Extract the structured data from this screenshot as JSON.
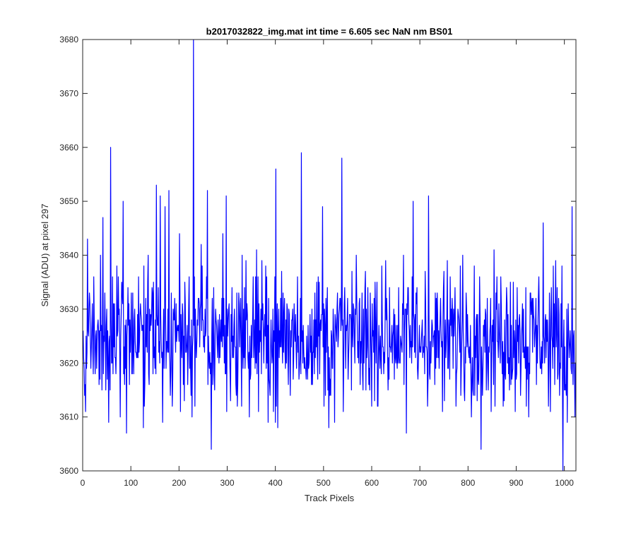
{
  "chart_data": {
    "type": "line",
    "title": "b2017032822_img.mat int time = 6.605 sec  NaN nm BS01",
    "xlabel": "Track Pixels",
    "ylabel": "Signal (ADU) at pixel 297",
    "xlim": [
      0,
      1024
    ],
    "ylim": [
      3600,
      3680
    ],
    "xticks": [
      0,
      100,
      200,
      300,
      400,
      500,
      600,
      700,
      800,
      900,
      1000
    ],
    "yticks": [
      3600,
      3610,
      3620,
      3630,
      3640,
      3650,
      3660,
      3670,
      3680
    ],
    "grid": false,
    "legend": "none",
    "series": [
      {
        "color": "#0000ff",
        "n_points": 1024,
        "noise_mean": 3626,
        "noise_range": [
          3607,
          3643
        ],
        "annotated_points": [
          [
            0,
            3626
          ],
          [
            3,
            3614
          ],
          [
            5,
            3611
          ],
          [
            9,
            3643
          ],
          [
            16,
            3619
          ],
          [
            22,
            3636
          ],
          [
            36,
            3640
          ],
          [
            41,
            3647
          ],
          [
            50,
            3617
          ],
          [
            53,
            3609
          ],
          [
            57,
            3660
          ],
          [
            60,
            3620
          ],
          [
            70,
            3638
          ],
          [
            80,
            3635
          ],
          [
            83,
            3650
          ],
          [
            90,
            3607
          ],
          [
            95,
            3631
          ],
          [
            105,
            3618
          ],
          [
            115,
            3636
          ],
          [
            125,
            3608
          ],
          [
            135,
            3640
          ],
          [
            145,
            3618
          ],
          [
            152,
            3653
          ],
          [
            157,
            3622
          ],
          [
            160,
            3651
          ],
          [
            165,
            3609
          ],
          [
            170,
            3649
          ],
          [
            178,
            3652
          ],
          [
            185,
            3612
          ],
          [
            200,
            3644
          ],
          [
            210,
            3613
          ],
          [
            220,
            3636
          ],
          [
            226,
            3610
          ],
          [
            229,
            3680
          ],
          [
            232,
            3612
          ],
          [
            245,
            3642
          ],
          [
            258,
            3652
          ],
          [
            264,
            3618
          ],
          [
            266,
            3604
          ],
          [
            275,
            3630
          ],
          [
            290,
            3644
          ],
          [
            297,
            3651
          ],
          [
            310,
            3621
          ],
          [
            320,
            3612
          ],
          [
            330,
            3640
          ],
          [
            345,
            3610
          ],
          [
            360,
            3641
          ],
          [
            375,
            3620
          ],
          [
            385,
            3632
          ],
          [
            395,
            3611
          ],
          [
            400,
            3656
          ],
          [
            404,
            3608
          ],
          [
            415,
            3633
          ],
          [
            430,
            3614
          ],
          [
            445,
            3636
          ],
          [
            453,
            3659
          ],
          [
            465,
            3620
          ],
          [
            475,
            3630
          ],
          [
            486,
            3622
          ],
          [
            497,
            3649
          ],
          [
            510,
            3608
          ],
          [
            522,
            3609
          ],
          [
            537,
            3658
          ],
          [
            550,
            3617
          ],
          [
            565,
            3630
          ],
          [
            580,
            3618
          ],
          [
            591,
            3634
          ],
          [
            605,
            3613
          ],
          [
            620,
            3638
          ],
          [
            633,
            3615
          ],
          [
            645,
            3630
          ],
          [
            660,
            3624
          ],
          [
            671,
            3607
          ],
          [
            680,
            3623
          ],
          [
            685,
            3650
          ],
          [
            695,
            3617
          ],
          [
            710,
            3637
          ],
          [
            717,
            3651
          ],
          [
            730,
            3616
          ],
          [
            740,
            3625
          ],
          [
            750,
            3613
          ],
          [
            762,
            3636
          ],
          [
            775,
            3618
          ],
          [
            788,
            3640
          ],
          [
            800,
            3622
          ],
          [
            812,
            3638
          ],
          [
            826,
            3604
          ],
          [
            835,
            3630
          ],
          [
            847,
            3611
          ],
          [
            860,
            3624
          ],
          [
            872,
            3612
          ],
          [
            887,
            3635
          ],
          [
            900,
            3618
          ],
          [
            912,
            3631
          ],
          [
            925,
            3610
          ],
          [
            940,
            3632
          ],
          [
            955,
            3646
          ],
          [
            966,
            3612
          ],
          [
            980,
            3629
          ],
          [
            990,
            3620
          ],
          [
            996,
            3600
          ],
          [
            1000,
            3623
          ],
          [
            1005,
            3609
          ],
          [
            1015,
            3649
          ],
          [
            1019,
            3626
          ],
          [
            1023,
            3617
          ]
        ]
      }
    ]
  }
}
